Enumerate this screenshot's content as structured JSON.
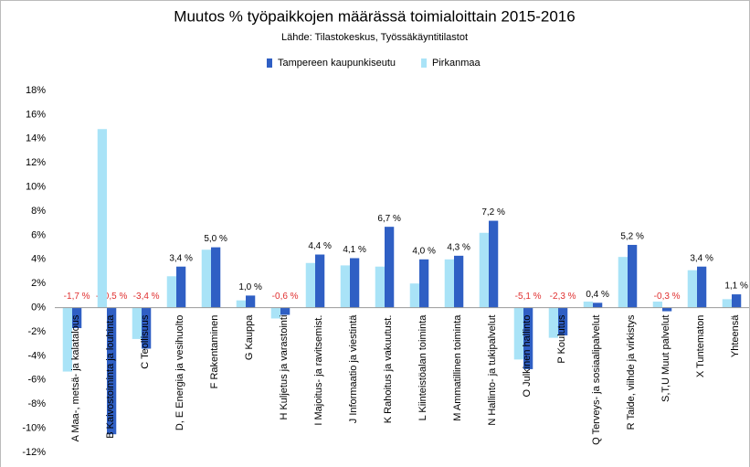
{
  "chart_data": {
    "type": "bar",
    "title": "Muutos % työpaikkojen määrässä toimialoittain 2015-2016",
    "subtitle": "Lähde: Tilastokeskus, Työssäkäyntitilastot",
    "categories": [
      "A Maa-, metsä- ja kalatalous",
      "B Kaivostoiminta ja louhinta",
      "C Teollisuus",
      "D, E Energia ja vesihuolto",
      "F Rakentaminen",
      "G Kauppa",
      "H Kuljetus ja varastointi",
      "I Majoitus- ja ravitsemist.",
      "J Informaatio ja viestintä",
      "K Rahoitus ja vakuutust.",
      "L Kiinteistöalan toiminta",
      "M Ammatillinen toiminta",
      "N Hallinto- ja tukipalvelut",
      "O Julkinen hallinto",
      "P Koulutus",
      "Q Terveys- ja sosiaalipalvelut",
      "R Taide, viihde ja virkistys",
      "S,T,U Muut palvelut",
      "X Tuntematon",
      "Yhteensä"
    ],
    "series": [
      {
        "name": "Tampereen kaupunkiseutu",
        "color": "#2f5fc4",
        "values": [
          -1.7,
          -10.5,
          -3.4,
          3.4,
          5.0,
          1.0,
          -0.6,
          4.4,
          4.1,
          6.7,
          4.0,
          4.3,
          7.2,
          -5.1,
          -2.3,
          0.4,
          5.2,
          -0.3,
          3.4,
          1.1
        ],
        "value_labels": [
          "-1,7 %",
          "-10,5 %",
          "-3,4 %",
          "3,4 %",
          "5,0 %",
          "1,0 %",
          "-0,6 %",
          "4,4 %",
          "4,1 %",
          "6,7 %",
          "4,0 %",
          "4,3 %",
          "7,2 %",
          "-5,1 %",
          "-2,3 %",
          "0,4 %",
          "5,2 %",
          "-0,3 %",
          "3,4 %",
          "1,1 %"
        ]
      },
      {
        "name": "Pirkanmaa",
        "color": "#a9e3f7",
        "values": [
          -5.3,
          14.8,
          -2.6,
          2.6,
          4.8,
          0.6,
          -0.9,
          3.7,
          3.5,
          3.4,
          2.0,
          4.0,
          6.2,
          -4.3,
          -2.5,
          0.5,
          4.2,
          0.5,
          3.1,
          0.7
        ]
      }
    ],
    "ylim": [
      -12,
      18
    ],
    "yticks": [
      {
        "value": -12,
        "label": "-12%"
      },
      {
        "value": -10,
        "label": "-10%"
      },
      {
        "value": -8,
        "label": "-8%"
      },
      {
        "value": -6,
        "label": "-6%"
      },
      {
        "value": -4,
        "label": "-4%"
      },
      {
        "value": -2,
        "label": "-2%"
      },
      {
        "value": 0,
        "label": "0%"
      },
      {
        "value": 2,
        "label": "2%"
      },
      {
        "value": 4,
        "label": "4%"
      },
      {
        "value": 6,
        "label": "6%"
      },
      {
        "value": 8,
        "label": "8%"
      },
      {
        "value": 10,
        "label": "10%"
      },
      {
        "value": 12,
        "label": "12%"
      },
      {
        "value": 14,
        "label": "14%"
      },
      {
        "value": 16,
        "label": "16%"
      },
      {
        "value": 18,
        "label": "18%"
      }
    ],
    "grid": false
  }
}
